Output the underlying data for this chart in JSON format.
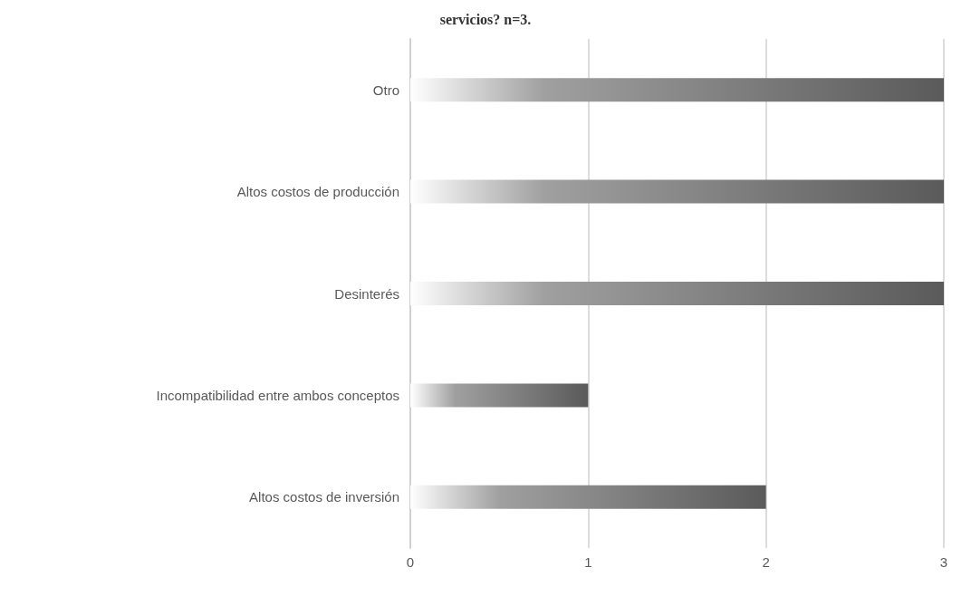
{
  "chart_data": {
    "type": "bar",
    "orientation": "horizontal",
    "title": "servicios? n=3.",
    "categories": [
      "Otro",
      "Altos costos de producción",
      "Desinterés",
      "Incompatibilidad entre ambos conceptos",
      "Altos costos de inversión"
    ],
    "values": [
      3,
      3,
      3,
      1,
      2
    ],
    "color": "#5a5a5a",
    "xlim": [
      0,
      3
    ],
    "xticks": [
      0,
      1,
      2,
      3
    ],
    "grid": "x"
  }
}
